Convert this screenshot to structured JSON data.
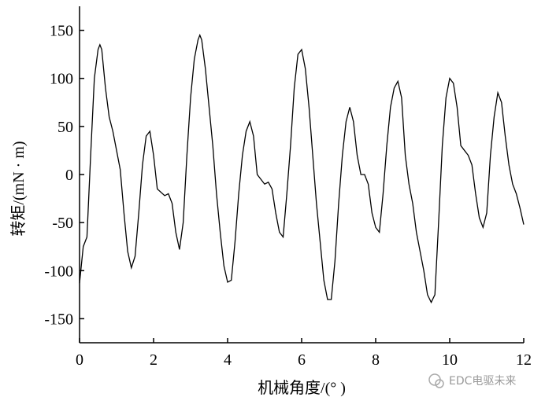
{
  "chart_data": {
    "type": "line",
    "x_label": "机械角度/(° )",
    "y_label": "转矩/(mN · m)",
    "watermark": "EDC电驱未来",
    "xlim": [
      0,
      12
    ],
    "xticks": [
      0,
      2,
      4,
      6,
      8,
      10,
      12
    ],
    "ylim": [
      -175,
      175
    ],
    "yticks": [
      -150,
      -100,
      -50,
      0,
      50,
      100,
      150
    ],
    "x": [
      0,
      0.1,
      0.2,
      0.3,
      0.4,
      0.5,
      0.55,
      0.6,
      0.7,
      0.8,
      0.9,
      1.0,
      1.1,
      1.2,
      1.3,
      1.4,
      1.5,
      1.6,
      1.7,
      1.8,
      1.9,
      2.0,
      2.1,
      2.3,
      2.4,
      2.5,
      2.6,
      2.7,
      2.8,
      2.9,
      3.0,
      3.1,
      3.2,
      3.25,
      3.3,
      3.4,
      3.5,
      3.6,
      3.7,
      3.8,
      3.9,
      4.0,
      4.1,
      4.2,
      4.3,
      4.4,
      4.5,
      4.6,
      4.7,
      4.8,
      4.9,
      5.0,
      5.1,
      5.2,
      5.3,
      5.4,
      5.5,
      5.6,
      5.7,
      5.8,
      5.9,
      6.0,
      6.1,
      6.2,
      6.3,
      6.4,
      6.5,
      6.6,
      6.7,
      6.8,
      6.9,
      7.0,
      7.1,
      7.2,
      7.3,
      7.4,
      7.5,
      7.6,
      7.7,
      7.8,
      7.9,
      8.0,
      8.1,
      8.2,
      8.3,
      8.4,
      8.5,
      8.6,
      8.7,
      8.8,
      8.9,
      9.0,
      9.1,
      9.2,
      9.3,
      9.4,
      9.5,
      9.6,
      9.7,
      9.8,
      9.9,
      10.0,
      10.1,
      10.2,
      10.3,
      10.4,
      10.5,
      10.6,
      10.7,
      10.8,
      10.9,
      11.0,
      11.1,
      11.2,
      11.3,
      11.4,
      11.5,
      11.6,
      11.7,
      11.8,
      11.9,
      12.0
    ],
    "series": [
      {
        "color": "#000000",
        "values": [
          -113,
          -75,
          -65,
          20,
          100,
          130,
          135,
          130,
          90,
          60,
          45,
          25,
          5,
          -40,
          -80,
          -97,
          -85,
          -40,
          10,
          40,
          45,
          20,
          -15,
          -22,
          -20,
          -30,
          -60,
          -78,
          -50,
          20,
          80,
          120,
          140,
          145,
          140,
          110,
          70,
          30,
          -20,
          -60,
          -95,
          -112,
          -110,
          -70,
          -20,
          20,
          45,
          55,
          40,
          0,
          -5,
          -10,
          -8,
          -15,
          -40,
          -60,
          -65,
          -20,
          30,
          90,
          125,
          130,
          110,
          70,
          20,
          -30,
          -70,
          -110,
          -130,
          -130,
          -90,
          -30,
          20,
          55,
          70,
          55,
          20,
          0,
          0,
          -10,
          -40,
          -55,
          -60,
          -20,
          30,
          70,
          90,
          97,
          80,
          20,
          -10,
          -30,
          -60,
          -80,
          -100,
          -125,
          -133,
          -125,
          -50,
          30,
          80,
          100,
          95,
          70,
          30,
          25,
          20,
          10,
          -20,
          -45,
          -55,
          -40,
          20,
          60,
          85,
          75,
          40,
          10,
          -10,
          -20,
          -35,
          -52
        ]
      }
    ]
  }
}
